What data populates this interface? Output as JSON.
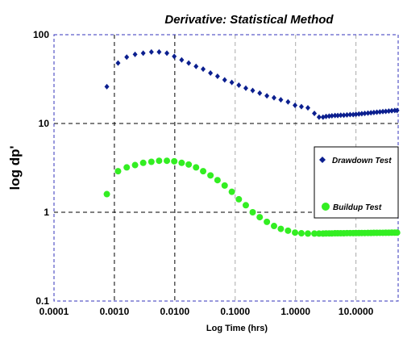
{
  "chart_data": {
    "type": "scatter",
    "title": "Derivative: Statistical Method",
    "xlabel": "Log Time (hrs)",
    "ylabel": "log dp'",
    "x_scale": "log",
    "y_scale": "log",
    "xlim": [
      0.0001,
      50
    ],
    "ylim": [
      0.1,
      100
    ],
    "x_ticks": [
      {
        "value": 0.0001,
        "label": "0.0001"
      },
      {
        "value": 0.001,
        "label": "0.0010"
      },
      {
        "value": 0.01,
        "label": "0.0100"
      },
      {
        "value": 0.1,
        "label": "0.1000"
      },
      {
        "value": 1,
        "label": "1.0000"
      },
      {
        "value": 10,
        "label": "10.0000"
      }
    ],
    "y_ticks": [
      {
        "value": 0.1,
        "label": "0.1"
      },
      {
        "value": 1,
        "label": "1"
      },
      {
        "value": 10,
        "label": "10"
      },
      {
        "value": 100,
        "label": "100"
      }
    ],
    "grid": true,
    "legend_position": "right",
    "series": [
      {
        "name": "Drawdown Test",
        "color": "#0b1f8f",
        "marker": "diamond",
        "x": [
          0.00075,
          0.00115,
          0.0016,
          0.0022,
          0.003,
          0.0041,
          0.0055,
          0.0074,
          0.0098,
          0.013,
          0.017,
          0.0225,
          0.0295,
          0.039,
          0.051,
          0.067,
          0.088,
          0.115,
          0.15,
          0.195,
          0.255,
          0.335,
          0.44,
          0.57,
          0.75,
          0.98,
          1.25,
          1.6,
          2.05,
          2.45,
          2.85,
          3.2,
          3.6,
          4.0,
          4.5,
          5.0,
          5.6,
          6.3,
          7.1,
          8.0,
          9.0,
          10.0,
          11.2,
          12.5,
          14.0,
          15.8,
          17.7,
          19.8,
          22.2,
          24.9,
          27.9,
          31.2,
          35.0,
          39.2,
          44.0,
          48.0
        ],
        "y": [
          26,
          48,
          56,
          60,
          62,
          64,
          64,
          62,
          57,
          52,
          48,
          44,
          41,
          37,
          34,
          31,
          29,
          27,
          25,
          23.5,
          22,
          20.5,
          19.5,
          18.5,
          17.5,
          16,
          15.5,
          15,
          13,
          11.8,
          11.8,
          12.0,
          12.1,
          12.2,
          12.3,
          12.3,
          12.4,
          12.4,
          12.5,
          12.6,
          12.6,
          12.7,
          12.8,
          12.9,
          13.0,
          13.1,
          13.2,
          13.3,
          13.4,
          13.5,
          13.6,
          13.7,
          13.8,
          13.9,
          14.0,
          14.0
        ]
      },
      {
        "name": "Buildup Test",
        "color": "#33ee22",
        "marker": "circle",
        "x": [
          0.00075,
          0.00115,
          0.0016,
          0.0022,
          0.003,
          0.0041,
          0.0055,
          0.0074,
          0.0098,
          0.013,
          0.017,
          0.0225,
          0.0295,
          0.039,
          0.051,
          0.067,
          0.088,
          0.115,
          0.15,
          0.195,
          0.255,
          0.335,
          0.44,
          0.57,
          0.75,
          0.98,
          1.25,
          1.6,
          2.05,
          2.45,
          2.85,
          3.2,
          3.6,
          4.0,
          4.5,
          5.0,
          5.6,
          6.3,
          7.1,
          8.0,
          9.0,
          10.0,
          11.2,
          12.5,
          14.0,
          15.8,
          17.7,
          19.8,
          22.2,
          24.9,
          27.9,
          31.2,
          35.0,
          39.2,
          44.0,
          48.0
        ],
        "y": [
          1.6,
          2.9,
          3.2,
          3.4,
          3.6,
          3.7,
          3.8,
          3.8,
          3.75,
          3.6,
          3.45,
          3.2,
          2.9,
          2.6,
          2.3,
          2.0,
          1.7,
          1.4,
          1.2,
          1.0,
          0.88,
          0.78,
          0.7,
          0.65,
          0.62,
          0.59,
          0.58,
          0.575,
          0.575,
          0.575,
          0.575,
          0.578,
          0.578,
          0.578,
          0.58,
          0.58,
          0.58,
          0.58,
          0.582,
          0.582,
          0.582,
          0.583,
          0.583,
          0.584,
          0.584,
          0.585,
          0.585,
          0.586,
          0.586,
          0.587,
          0.587,
          0.588,
          0.588,
          0.589,
          0.589,
          0.59
        ]
      }
    ]
  }
}
